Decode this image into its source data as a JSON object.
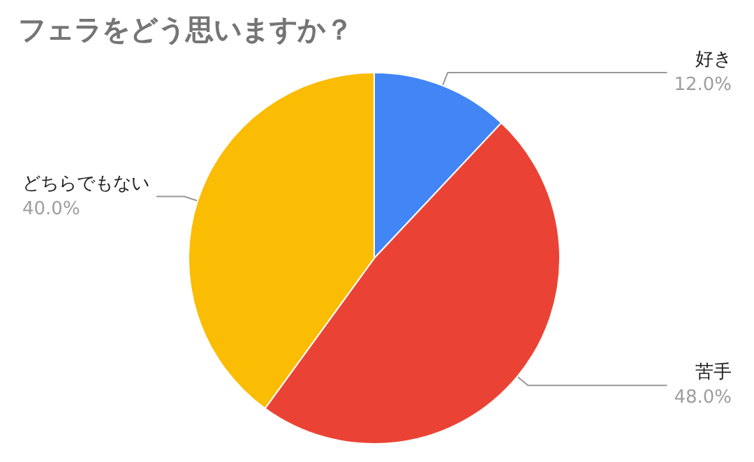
{
  "chart_data": {
    "type": "pie",
    "title": "フェラをどう思いますか？",
    "categories": [
      "好き",
      "苦手",
      "どちらでもない"
    ],
    "values": [
      12,
      48,
      40
    ],
    "value_labels": [
      "12.0%",
      "48.0%",
      "40.0%"
    ],
    "colors": [
      "#4285f4",
      "#ea4335",
      "#fbbc04"
    ],
    "legend": false
  }
}
